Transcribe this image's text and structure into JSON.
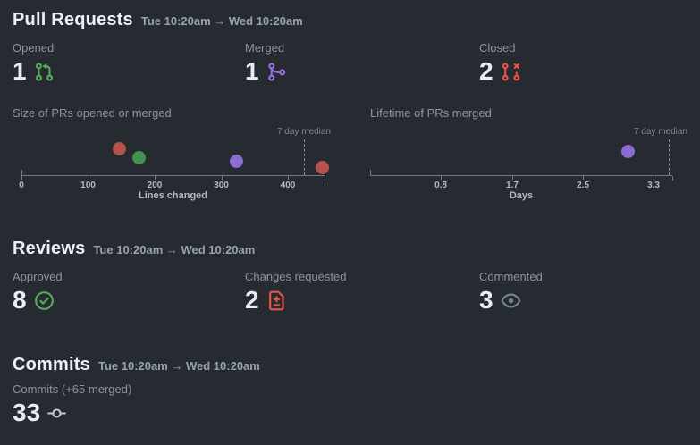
{
  "colors": {
    "background": "#262b32",
    "green": "#57ab5a",
    "purple": "#986ee2",
    "red": "#e5534b",
    "gray": "#768390",
    "light": "#c6cdd5",
    "axis": "#707b87"
  },
  "pull_requests": {
    "title": "Pull Requests",
    "range": "Tue 10:20am → Wed 10:20am",
    "stats": [
      {
        "label": "Opened",
        "value": "1",
        "icon": "git-pull-request-icon",
        "color": "#57ab5a"
      },
      {
        "label": "Merged",
        "value": "1",
        "icon": "git-merge-icon",
        "color": "#986ee2"
      },
      {
        "label": "Closed",
        "value": "2",
        "icon": "git-pull-request-closed-icon",
        "color": "#e5534b"
      }
    ]
  },
  "reviews": {
    "title": "Reviews",
    "range": "Tue 10:20am → Wed 10:20am",
    "stats": [
      {
        "label": "Approved",
        "value": "8",
        "icon": "check-circle-icon",
        "color": "#57ab5a"
      },
      {
        "label": "Changes requested",
        "value": "2",
        "icon": "file-diff-icon",
        "color": "#e5534b"
      },
      {
        "label": "Commented",
        "value": "3",
        "icon": "eye-icon",
        "color": "#768390"
      }
    ]
  },
  "commits": {
    "title": "Commits",
    "range": "Tue 10:20am → Wed 10:20am",
    "stats": [
      {
        "label": "Commits (+65 merged)",
        "value": "33",
        "icon": "git-commit-icon",
        "color": "#c6cdd5"
      }
    ]
  },
  "chart_data": [
    {
      "type": "scatter",
      "title": "Size of PRs opened or merged",
      "xlabel": "Lines changed",
      "xlim": [
        0,
        455
      ],
      "xticks": [
        {
          "value": 0,
          "label": "0"
        },
        {
          "value": 100,
          "label": "100"
        },
        {
          "value": 200,
          "label": "200"
        },
        {
          "value": 300,
          "label": "300"
        },
        {
          "value": 400,
          "label": "400"
        }
      ],
      "median_label": "7 day median",
      "median_value": 424,
      "grid": false,
      "legend": false,
      "points": [
        {
          "x": 147,
          "series": "closed",
          "color": "#b5524b",
          "dy": 30
        },
        {
          "x": 177,
          "series": "opened",
          "color": "#469050",
          "dy": 20
        },
        {
          "x": 323,
          "series": "merged",
          "color": "#8c6cd0",
          "dy": 16
        },
        {
          "x": 452,
          "series": "closed",
          "color": "#b5524b",
          "dy": 9
        }
      ]
    },
    {
      "type": "scatter",
      "title": "Lifetime of PRs merged",
      "xlabel": "Days",
      "xlim": [
        0,
        3.55
      ],
      "xticks": [
        {
          "value": 0.83,
          "label": "0.8"
        },
        {
          "value": 1.67,
          "label": "1.7"
        },
        {
          "value": 2.5,
          "label": "2.5"
        },
        {
          "value": 3.33,
          "label": "3.3"
        }
      ],
      "median_label": "7 day median",
      "median_value": 3.51,
      "grid": false,
      "legend": false,
      "points": [
        {
          "x": 3.03,
          "series": "merged",
          "color": "#8c6cd0",
          "dy": 27
        }
      ]
    }
  ]
}
